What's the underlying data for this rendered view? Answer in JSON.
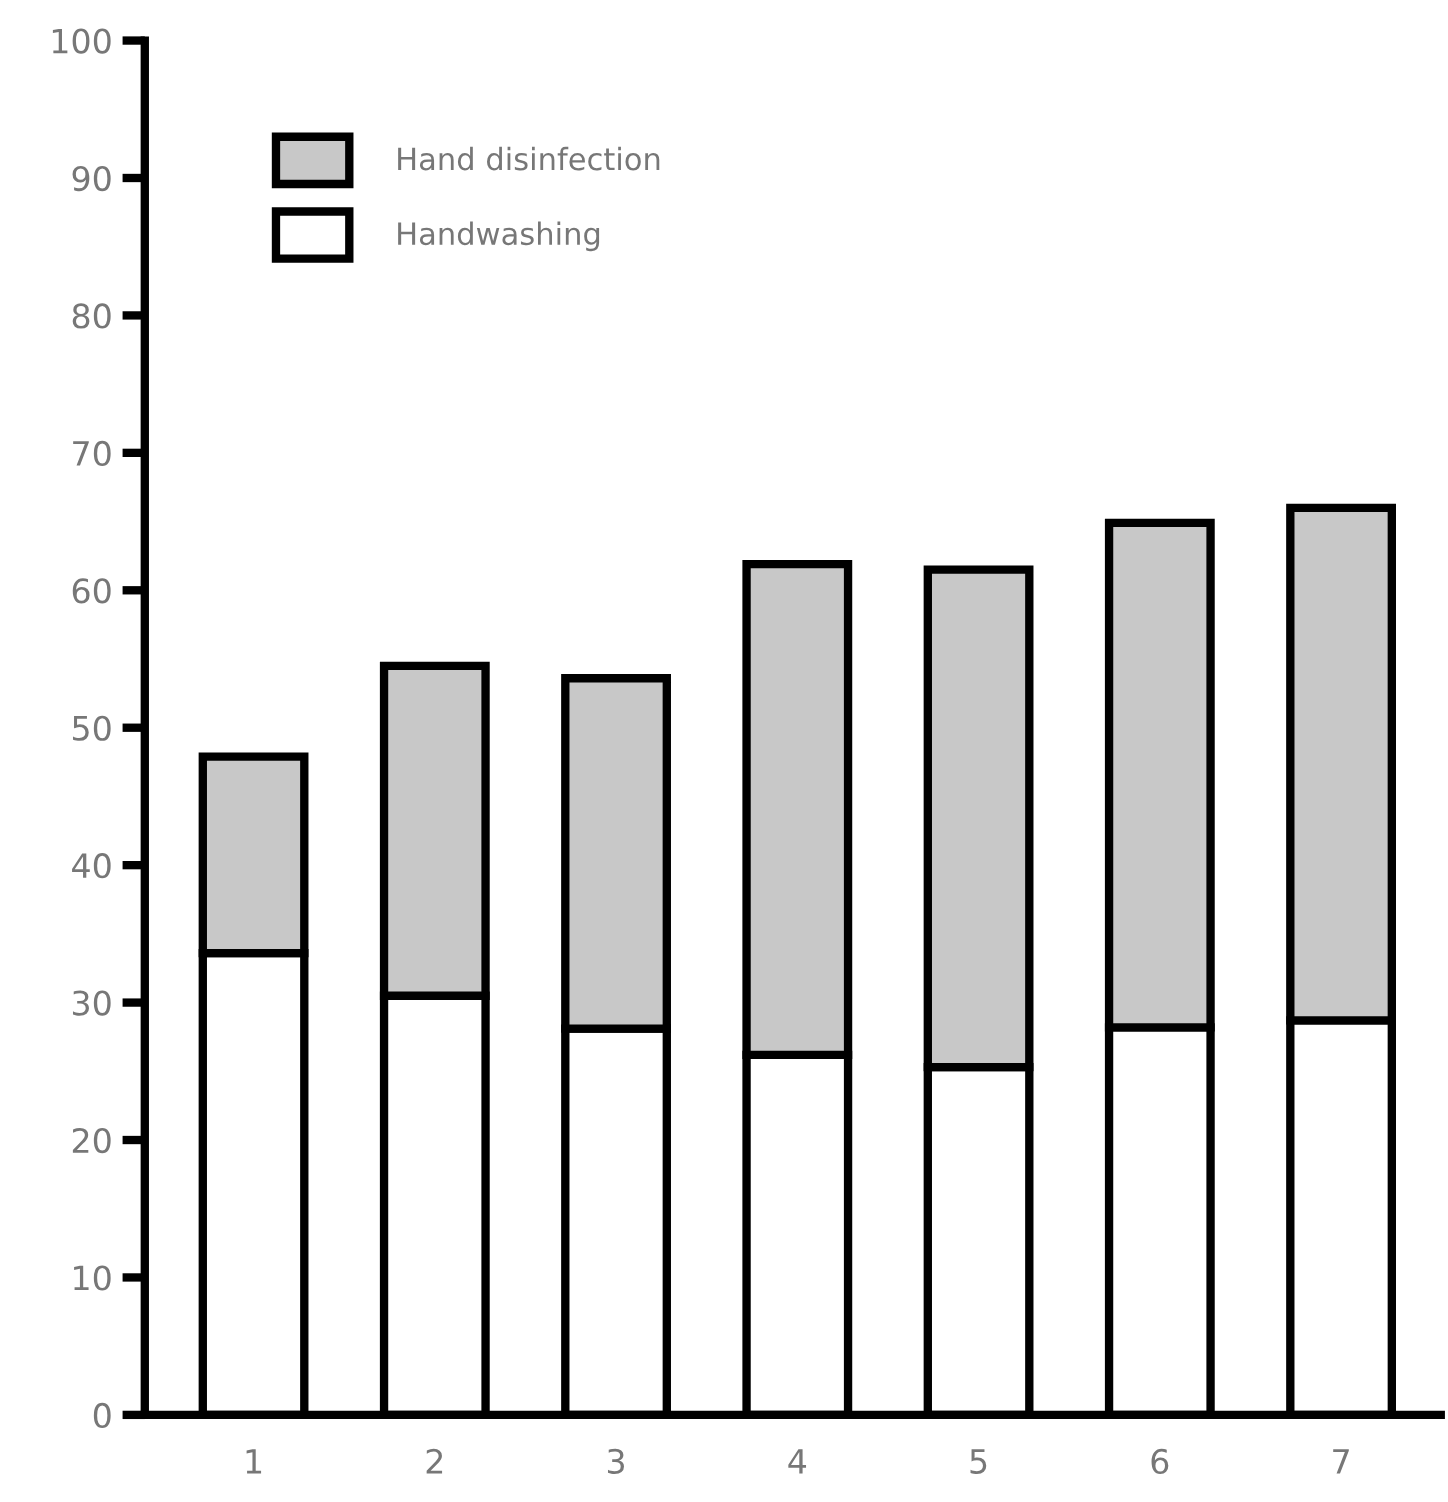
{
  "chart_data": {
    "type": "bar",
    "stacked": true,
    "categories": [
      "1",
      "2",
      "3",
      "4",
      "5",
      "6",
      "7"
    ],
    "series": [
      {
        "name": "Handwashing",
        "color": "#ffffff",
        "values": [
          33.6,
          30.5,
          28.1,
          26.2,
          25.3,
          28.2,
          28.7
        ]
      },
      {
        "name": "Hand disinfection",
        "color": "#c8c8c8",
        "values": [
          14.3,
          24.0,
          25.5,
          35.7,
          36.2,
          36.7,
          37.3
        ]
      }
    ],
    "ylim": [
      0,
      100
    ],
    "yticks": [
      0,
      10,
      20,
      30,
      40,
      50,
      60,
      70,
      80,
      90,
      100
    ],
    "grid": false,
    "legend": "top left"
  }
}
